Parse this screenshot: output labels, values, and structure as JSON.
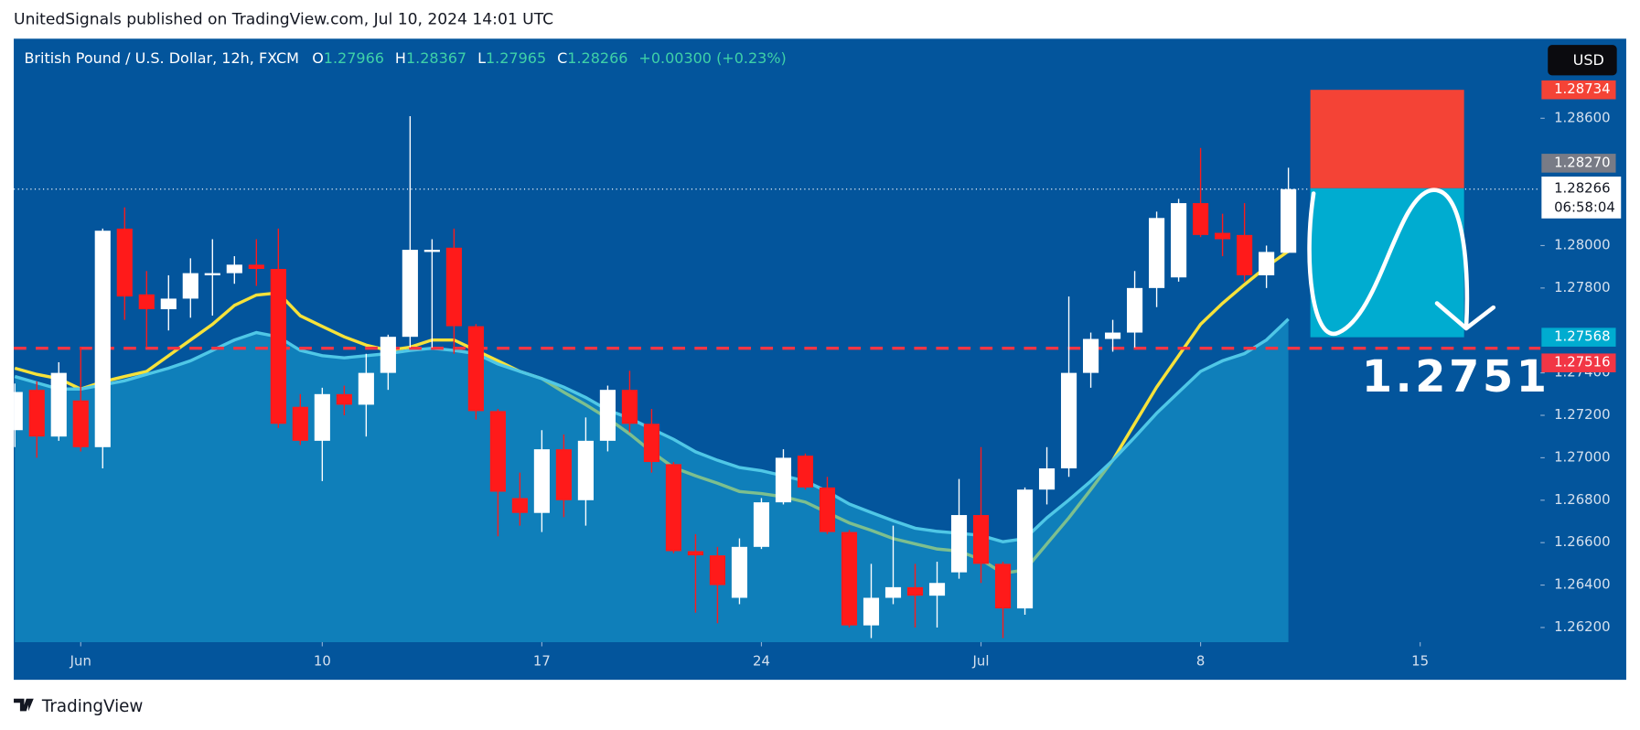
{
  "header": {
    "text": "UnitedSignals published on TradingView.com, Jul 10, 2024 14:01 UTC"
  },
  "footer": {
    "brand": "TradingView"
  },
  "chart_data": {
    "type": "candlestick",
    "title": "British Pound / U.S. Dollar, 12h, FXCM",
    "legend_labels": [
      "O",
      "H",
      "L",
      "C"
    ],
    "change": "+0.00300 (+0.23%)",
    "currency": "USD",
    "countdown": "06:58:04",
    "up_color": "#ffffff",
    "down_color": "#ff1a1a",
    "open": [
      1.2713,
      1.2732,
      1.271,
      1.2727,
      1.2705,
      1.2808,
      1.2777,
      1.277,
      1.2775,
      1.2786,
      1.2787,
      1.2791,
      1.2789,
      1.2724,
      1.2708,
      1.273,
      1.2725,
      1.274,
      1.2757,
      1.2797,
      1.2799,
      1.2762,
      1.2722,
      1.2681,
      1.2674,
      1.2704,
      1.268,
      1.2708,
      1.2732,
      1.2716,
      1.2697,
      1.2656,
      1.2654,
      1.2634,
      1.2658,
      1.2679,
      1.2701,
      1.2686,
      1.2665,
      1.2621,
      1.2634,
      1.2639,
      1.2635,
      1.2646,
      1.2673,
      1.265,
      1.2629,
      1.2685,
      1.2695,
      1.274,
      1.2756,
      1.2759,
      1.278,
      1.2785,
      1.282,
      1.2806,
      1.2805,
      1.2786,
      1.27966
    ],
    "high": [
      1.2735,
      1.2736,
      1.2745,
      1.2752,
      1.2808,
      1.2818,
      1.2788,
      1.2786,
      1.2794,
      1.2803,
      1.2795,
      1.2803,
      1.2808,
      1.273,
      1.2733,
      1.2734,
      1.2749,
      1.2758,
      1.2861,
      1.2803,
      1.2808,
      1.2763,
      1.2723,
      1.2693,
      1.2713,
      1.2711,
      1.2719,
      1.2734,
      1.2741,
      1.2723,
      1.2698,
      1.2664,
      1.2658,
      1.2662,
      1.2681,
      1.2704,
      1.2702,
      1.2691,
      1.2666,
      1.265,
      1.2668,
      1.265,
      1.2651,
      1.269,
      1.2705,
      1.2651,
      1.2686,
      1.2705,
      1.2776,
      1.2759,
      1.2765,
      1.2788,
      1.2816,
      1.2822,
      1.2846,
      1.2815,
      1.282,
      1.28,
      1.28367
    ],
    "low": [
      1.2705,
      1.27,
      1.2708,
      1.2703,
      1.2695,
      1.2765,
      1.2752,
      1.276,
      1.2766,
      1.2767,
      1.2782,
      1.2781,
      1.2714,
      1.2706,
      1.2689,
      1.272,
      1.271,
      1.2732,
      1.2752,
      1.2752,
      1.2749,
      1.2718,
      1.2663,
      1.2668,
      1.2665,
      1.2672,
      1.2668,
      1.2703,
      1.2712,
      1.2693,
      1.2655,
      1.2627,
      1.2622,
      1.2631,
      1.2657,
      1.2678,
      1.2685,
      1.2664,
      1.262,
      1.2615,
      1.2631,
      1.262,
      1.262,
      1.2643,
      1.2641,
      1.2615,
      1.2626,
      1.2678,
      1.2691,
      1.2733,
      1.275,
      1.2752,
      1.2771,
      1.2783,
      1.2804,
      1.2795,
      1.2783,
      1.278,
      1.27965
    ],
    "close": [
      1.2731,
      1.271,
      1.274,
      1.2705,
      1.2807,
      1.2776,
      1.277,
      1.2775,
      1.2787,
      1.2787,
      1.2791,
      1.2789,
      1.2716,
      1.2708,
      1.273,
      1.2725,
      1.274,
      1.2757,
      1.2798,
      1.2798,
      1.2762,
      1.2722,
      1.2684,
      1.2674,
      1.2704,
      1.268,
      1.2708,
      1.2732,
      1.2716,
      1.2698,
      1.2656,
      1.2654,
      1.264,
      1.2658,
      1.2679,
      1.27,
      1.2686,
      1.2665,
      1.2621,
      1.2634,
      1.2639,
      1.2635,
      1.2641,
      1.2673,
      1.265,
      1.2629,
      1.2685,
      1.2695,
      1.274,
      1.2756,
      1.2759,
      1.278,
      1.2813,
      1.282,
      1.2805,
      1.2803,
      1.2786,
      1.2797,
      1.28266
    ],
    "lines": [
      {
        "color": "#f6e23a",
        "values": [
          1.27422,
          1.27393,
          1.27373,
          1.27324,
          1.27358,
          1.27383,
          1.27407,
          1.27481,
          1.27555,
          1.27629,
          1.27718,
          1.27767,
          1.27777,
          1.27669,
          1.27619,
          1.2757,
          1.27531,
          1.27506,
          1.27521,
          1.27555,
          1.27555,
          1.27506,
          1.27457,
          1.27407,
          1.27373,
          1.27309,
          1.2725,
          1.27186,
          1.27112,
          1.27028,
          1.26954,
          1.26915,
          1.2688,
          1.26841,
          1.26831,
          1.26816,
          1.26791,
          1.26742,
          1.26693,
          1.26658,
          1.26619,
          1.26594,
          1.2657,
          1.2656,
          1.2652,
          1.26456,
          1.26471,
          1.26594,
          1.26717,
          1.2685,
          1.26988,
          1.27161,
          1.27333,
          1.27481,
          1.27629,
          1.27728,
          1.27816,
          1.279,
          1.27974
        ]
      },
      {
        "color": "#4fc7e6",
        "fill": "#1aa3d4",
        "values": [
          1.27383,
          1.27353,
          1.27324,
          1.27324,
          1.27343,
          1.27363,
          1.27393,
          1.27422,
          1.27457,
          1.27506,
          1.27555,
          1.2759,
          1.2757,
          1.27506,
          1.27481,
          1.27471,
          1.27481,
          1.27491,
          1.27506,
          1.27516,
          1.27506,
          1.27491,
          1.27442,
          1.27407,
          1.27373,
          1.27333,
          1.27284,
          1.27225,
          1.27186,
          1.27136,
          1.27087,
          1.27028,
          1.26988,
          1.26954,
          1.26939,
          1.26915,
          1.2689,
          1.26841,
          1.26782,
          1.26742,
          1.26703,
          1.26668,
          1.26653,
          1.26644,
          1.26634,
          1.26604,
          1.26619,
          1.26717,
          1.26801,
          1.2689,
          1.26988,
          1.27097,
          1.2721,
          1.27309,
          1.27407,
          1.27457,
          1.27491,
          1.27555,
          1.27654
        ]
      }
    ],
    "xlim": [
      -0.05,
      69.48
    ],
    "ylim": [
      1.26131,
      1.28975
    ],
    "xticks": [
      {
        "value": 3,
        "label": "Jun"
      },
      {
        "value": 14,
        "label": "10"
      },
      {
        "value": 24,
        "label": "17"
      },
      {
        "value": 34,
        "label": "24"
      },
      {
        "value": 44,
        "label": "Jul"
      },
      {
        "value": 54,
        "label": "8"
      },
      {
        "value": 64,
        "label": "15"
      }
    ],
    "yticks": [
      {
        "value": 1.262,
        "label": "1.26200"
      },
      {
        "value": 1.264,
        "label": "1.26400"
      },
      {
        "value": 1.266,
        "label": "1.26600"
      },
      {
        "value": 1.268,
        "label": "1.26800"
      },
      {
        "value": 1.27,
        "label": "1.27000"
      },
      {
        "value": 1.272,
        "label": "1.27200"
      },
      {
        "value": 1.274,
        "label": "1.27400"
      },
      {
        "value": 1.278,
        "label": "1.27800"
      },
      {
        "value": 1.28,
        "label": "1.28000"
      },
      {
        "value": 1.286,
        "label": "1.28600"
      }
    ],
    "level": {
      "value": 1.27516,
      "label": "1.27516",
      "color": "#f23645"
    },
    "annotation": "1.2751",
    "position": {
      "x_start": 59,
      "x_end": 66,
      "stop": {
        "value": 1.28734,
        "label": "1.28734"
      },
      "entry": {
        "value": 1.2827,
        "label": "1.28270"
      },
      "target": {
        "value": 1.27568,
        "label": "1.27568"
      },
      "stop_color": "#f44336",
      "target_color": "#00acd0"
    }
  }
}
